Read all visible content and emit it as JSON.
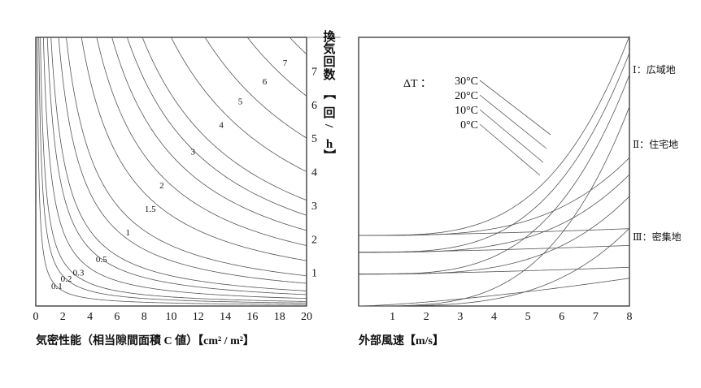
{
  "chart_data": [
    {
      "type": "line",
      "xlabel": "気密性能（相当隙間面積 C 値）【cm² / m²】",
      "ylabel_chars": [
        "換",
        "気",
        "回",
        "数",
        "【",
        "回",
        "/",
        "h",
        "】"
      ],
      "x_ticks": [
        "0",
        "2",
        "4",
        "6",
        "8",
        "10",
        "12",
        "14",
        "16",
        "18",
        "20"
      ],
      "y_ticks": [
        "1",
        "2",
        "3",
        "4",
        "5",
        "6",
        "7"
      ],
      "xlim": [
        0,
        20
      ],
      "ylim": [
        0,
        8
      ],
      "series": [
        {
          "name": "0.1",
          "k": 0.9
        },
        {
          "name": "0.2",
          "k": 1.8
        },
        {
          "name": "0.3",
          "k": 2.7
        },
        {
          "name": "0.5",
          "k": 4.5
        },
        {
          "name": "1",
          "k": 9
        },
        {
          "name": "1.5",
          "k": 13.5
        },
        {
          "name": "2",
          "k": 18
        },
        {
          "name": "3",
          "k": 27
        },
        {
          "name": "4",
          "k": 36
        },
        {
          "name": "5",
          "k": 45
        },
        {
          "name": "6",
          "k": 54
        },
        {
          "name": "7",
          "k": 63
        },
        {
          "k": 6.8
        },
        {
          "k": 80
        },
        {
          "k": 100
        },
        {
          "k": 125
        },
        {
          "k": 150
        },
        {
          "k": 180
        }
      ]
    },
    {
      "type": "line",
      "xlabel": "外部風速【m/s】",
      "x_ticks": [
        "1",
        "2",
        "3",
        "4",
        "5",
        "6",
        "7",
        "8"
      ],
      "xlim": [
        0,
        8
      ],
      "ylim": [
        0,
        8
      ],
      "delta_t_label": "ΔT ：",
      "delta_t_values": [
        "30°C",
        "20°C",
        "10°C",
        "0°C"
      ],
      "zones": [
        "Ⅰ：広域地",
        "Ⅱ：住宅地",
        "Ⅲ：密集地"
      ],
      "series": [
        {
          "zone": "Ⅰ",
          "base": 2.1,
          "a": 0.0041,
          "p": 3.5
        },
        {
          "zone": "Ⅰ",
          "base": 1.6,
          "a": 0.0041,
          "p": 3.5
        },
        {
          "zone": "Ⅰ",
          "base": 0.95,
          "a": 0.0041,
          "p": 3.5
        },
        {
          "zone": "Ⅰ",
          "base": 0.0,
          "a": 0.0041,
          "p": 3.5
        },
        {
          "zone": "Ⅱ",
          "base": 2.1,
          "a": 0.0016,
          "p": 3.5
        },
        {
          "zone": "Ⅱ",
          "base": 1.6,
          "a": 0.0016,
          "p": 3.5
        },
        {
          "zone": "Ⅱ",
          "base": 0.95,
          "a": 0.0016,
          "p": 3.5
        },
        {
          "zone": "Ⅱ",
          "base": 0.0,
          "a": 0.0016,
          "p": 3.5
        },
        {
          "zone": "Ⅲ",
          "base": 2.1,
          "a": 0.009,
          "p": 1.5
        },
        {
          "zone": "Ⅲ",
          "base": 1.6,
          "a": 0.009,
          "p": 1.5
        },
        {
          "zone": "Ⅲ",
          "base": 0.95,
          "a": 0.009,
          "p": 1.5
        },
        {
          "zone": "Ⅲ",
          "base": 0.0,
          "a": 0.045,
          "p": 1.4
        }
      ]
    }
  ]
}
